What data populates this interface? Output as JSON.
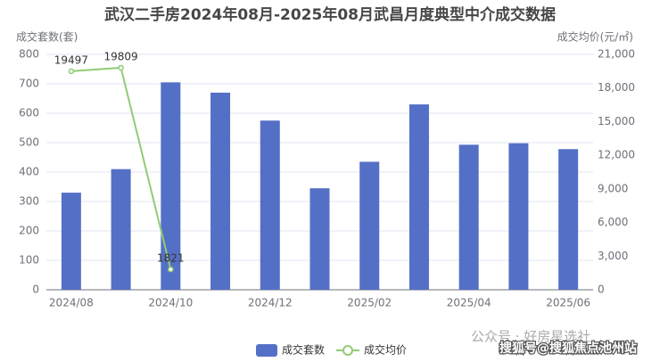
{
  "chart_data": {
    "type": "bar",
    "title": "武汉二手房2024年08月-2025年08月武昌月度典型中介成交数据",
    "y_label": "成交套数(套)",
    "y2_label": "成交均价(元/㎡)",
    "categories": [
      "2024/08",
      null,
      "2024/10",
      null,
      "2024/12",
      null,
      "2025/02",
      null,
      "2025/04",
      null,
      "2025/06"
    ],
    "series": [
      {
        "name": "成交套数",
        "type": "bar",
        "color": "#5470c6",
        "values": [
          330,
          410,
          705,
          670,
          575,
          345,
          435,
          630,
          493,
          498,
          478
        ]
      },
      {
        "name": "成交均价",
        "type": "line",
        "axis": "y2",
        "color": "#91cc75",
        "values": [
          19497,
          19809,
          1821,
          null,
          null,
          null,
          null,
          null,
          null,
          null,
          null
        ]
      }
    ],
    "ylim": [
      0,
      800
    ],
    "yticks": [
      0,
      100,
      200,
      300,
      400,
      500,
      600,
      700,
      800
    ],
    "y2lim": [
      0,
      21000
    ],
    "y2ticks": [
      0,
      {
        "value": 3000,
        "label": "3,000"
      },
      {
        "value": 6000,
        "label": "6,000"
      },
      {
        "value": 9000,
        "label": "9,000"
      },
      {
        "value": 12000,
        "label": "12,000"
      },
      {
        "value": 15000,
        "label": "15,000"
      },
      {
        "value": 18000,
        "label": "18,000"
      },
      {
        "value": 21000,
        "label": "21,000"
      }
    ],
    "grid": true,
    "legend": "bottom",
    "watermarks": [
      "公众号 · 好房星选社",
      "搜狐号@搜狐焦点池州站"
    ]
  }
}
